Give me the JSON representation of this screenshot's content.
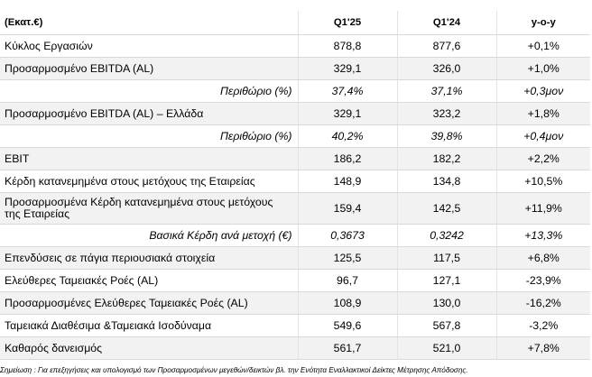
{
  "table": {
    "header": {
      "label": "(Εκατ.€)",
      "q1_25": "Q1'25",
      "q1_24": "Q1'24",
      "yoy": "y-o-y"
    },
    "rows": [
      {
        "label": "Κύκλος Εργασιών",
        "q1_25": "878,8",
        "q1_24": "877,6",
        "yoy": "+0,1%"
      },
      {
        "label": "Προσαρμοσμένο EBITDA (AL)",
        "q1_25": "329,1",
        "q1_24": "326,0",
        "yoy": "+1,0%"
      },
      {
        "label": "Περιθώριο (%)",
        "q1_25": "37,4%",
        "q1_24": "37,1%",
        "yoy": "+0,3μον"
      },
      {
        "label": "Προσαρμοσμένο EBITDA (AL) – Ελλάδα",
        "q1_25": "329,1",
        "q1_24": "323,2",
        "yoy": "+1,8%"
      },
      {
        "label": "Περιθώριο (%)",
        "q1_25": "40,2%",
        "q1_24": "39,8%",
        "yoy": "+0,4μον"
      },
      {
        "label": "EBIT",
        "q1_25": "186,2",
        "q1_24": "182,2",
        "yoy": "+2,2%"
      },
      {
        "label": "Κέρδη κατανεμημένα στους μετόχους της Εταιρείας",
        "q1_25": "148,9",
        "q1_24": "134,8",
        "yoy": "+10,5%"
      },
      {
        "label": "Προσαρμοσμένα Κέρδη κατανεμημένα στους μετόχους της Εταιρείας",
        "q1_25": "159,4",
        "q1_24": "142,5",
        "yoy": "+11,9%"
      },
      {
        "label": "Βασικά Κέρδη ανά μετοχή (€)",
        "q1_25": "0,3673",
        "q1_24": "0,3242",
        "yoy": "+13,3%"
      },
      {
        "label": "Επενδύσεις σε πάγια περιουσιακά στοιχεία",
        "q1_25": "125,5",
        "q1_24": "117,5",
        "yoy": "+6,8%"
      },
      {
        "label": "Ελεύθερες Ταμειακές Ροές (AL)",
        "q1_25": "96,7",
        "q1_24": "127,1",
        "yoy": "-23,9%"
      },
      {
        "label": "Προσαρμοσμένες Ελεύθερες Ταμειακές Ροές (AL)",
        "q1_25": "108,9",
        "q1_24": "130,0",
        "yoy": "-16,2%"
      },
      {
        "label": "Ταμειακά Διαθέσιμα &Ταμειακά Ισοδύναμα",
        "q1_25": "549,6",
        "q1_24": "567,8",
        "yoy": "-3,2%"
      },
      {
        "label": "Καθαρός δανεισμός",
        "q1_25": "561,7",
        "q1_24": "521,0",
        "yoy": "+7,8%"
      }
    ],
    "shade_color": "#f2f2f2"
  },
  "footnote": "Σημείωση : Για επεξηγήσεις και υπολογισμό των Προσαρμοσμένων μεγεθών/δεικτών βλ. την Ενότητα Εναλλακτικοί Δείκτες Μέτρησης Απόδοσης."
}
